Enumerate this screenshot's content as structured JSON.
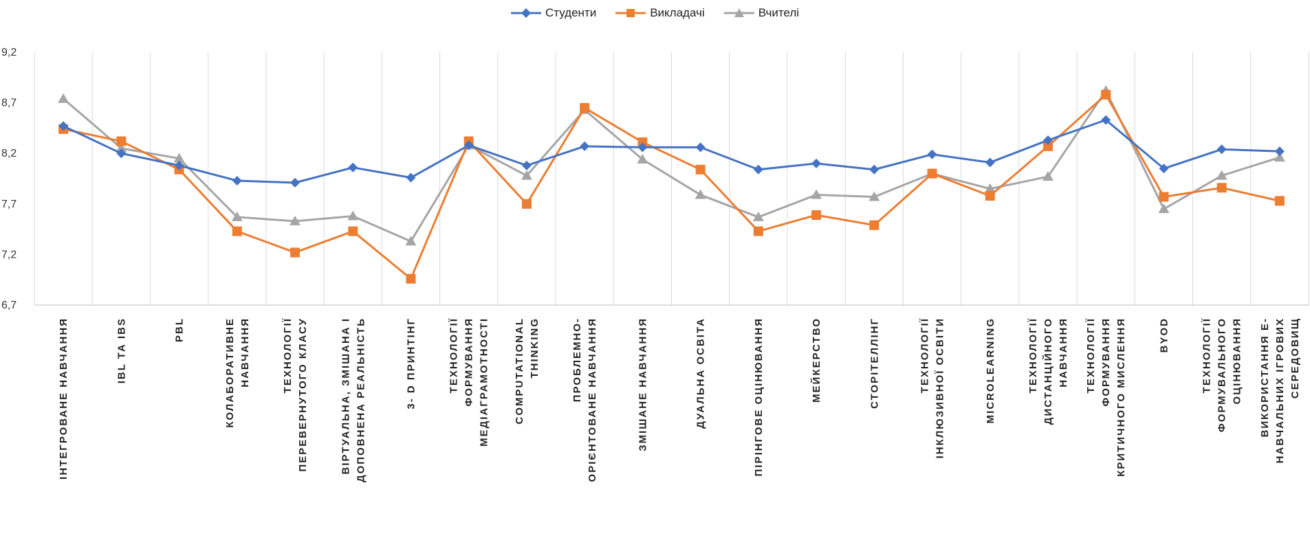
{
  "chart_data": {
    "type": "line",
    "title": "",
    "xlabel": "",
    "ylabel": "",
    "ylim": [
      6.7,
      9.2
    ],
    "yticks": [
      "9,2",
      "8,7",
      "8,2",
      "7,7",
      "7,2",
      "6,7"
    ],
    "ytick_values": [
      9.2,
      8.7,
      8.2,
      7.7,
      7.2,
      6.7
    ],
    "legend_position": "top",
    "grid": "vertical",
    "categories": [
      [
        "ІНТЕГРОВАНЕ НАВЧАННЯ"
      ],
      [
        "IBL ТА IBS"
      ],
      [
        "PBL"
      ],
      [
        "КОЛАБОРАТИВНЕ",
        "НАВЧАННЯ"
      ],
      [
        "ТЕХНОЛОГІЇ",
        "ПЕРЕВЕРНУТОГО КЛАСУ"
      ],
      [
        "ВІРТУАЛЬНА, ЗМІШАНА І",
        "ДОПОВНЕНА РЕАЛЬНІСТЬ"
      ],
      [
        "3- D ПРИНТІНГ"
      ],
      [
        "ТЕХНОЛОГІЇ",
        "ФОРМУВАННЯ",
        "МЕДІАГРАМОТНОСТІ"
      ],
      [
        "COMPUTATIONAL",
        "THINKING"
      ],
      [
        "ПРОБЛЕМНО-",
        "ОРІЄНТОВАНЕ НАВЧАННЯ"
      ],
      [
        "ЗМІШАНЕ НАВЧАННЯ"
      ],
      [
        "ДУАЛЬНА ОСВІТА"
      ],
      [
        "ПІРІНГОВЕ ОЦІНЮВАННЯ"
      ],
      [
        "МЕЙКЕРСТВО"
      ],
      [
        "СТОРІТЕЛЛІНГ"
      ],
      [
        "ТЕХНОЛОГІЇ",
        "ІНКЛЮЗИВНОЇ ОСВІТИ"
      ],
      [
        "MICROLEARNING"
      ],
      [
        "ТЕХНОЛОГІЇ",
        "ДИСТАНЦІЙНОГО",
        "НАВЧАННЯ"
      ],
      [
        "ТЕХНОЛОГІЇ",
        "ФОРМУВАННЯ",
        "КРИТИЧНОГО МИСЛЕННЯ"
      ],
      [
        "BYOD"
      ],
      [
        "ТЕХНОЛОГІЇ",
        "ФОРМУВАЛЬНОГО",
        "ОЦІНЮВАННЯ"
      ],
      [
        "ВИКОРИСТАННЯ Е-",
        "НАВЧАЛЬНИХ ІГРОВИХ",
        "СЕРЕДОВИЩ"
      ]
    ],
    "series": [
      {
        "name": "Студенти",
        "color": "#4472C4",
        "marker": "diamond",
        "values": [
          8.47,
          8.2,
          8.08,
          7.93,
          7.91,
          8.06,
          7.96,
          8.28,
          8.08,
          8.27,
          8.26,
          8.26,
          8.04,
          8.1,
          8.04,
          8.19,
          8.11,
          8.33,
          8.53,
          8.05,
          8.24,
          8.22
        ]
      },
      {
        "name": "Викладачі",
        "color": "#ED7D31",
        "marker": "square",
        "values": [
          8.44,
          8.32,
          8.04,
          7.43,
          7.22,
          7.43,
          6.96,
          8.32,
          7.7,
          8.65,
          8.31,
          8.04,
          7.43,
          7.59,
          7.49,
          8.0,
          7.78,
          8.27,
          8.78,
          7.77,
          7.86,
          7.73
        ]
      },
      {
        "name": "Вчителі",
        "color": "#A5A5A5",
        "marker": "triangle",
        "values": [
          8.74,
          8.25,
          8.15,
          7.57,
          7.53,
          7.58,
          7.33,
          8.28,
          7.98,
          8.63,
          8.14,
          7.79,
          7.57,
          7.79,
          7.77,
          8.0,
          7.85,
          7.97,
          8.82,
          7.65,
          7.98,
          8.16
        ]
      }
    ]
  }
}
